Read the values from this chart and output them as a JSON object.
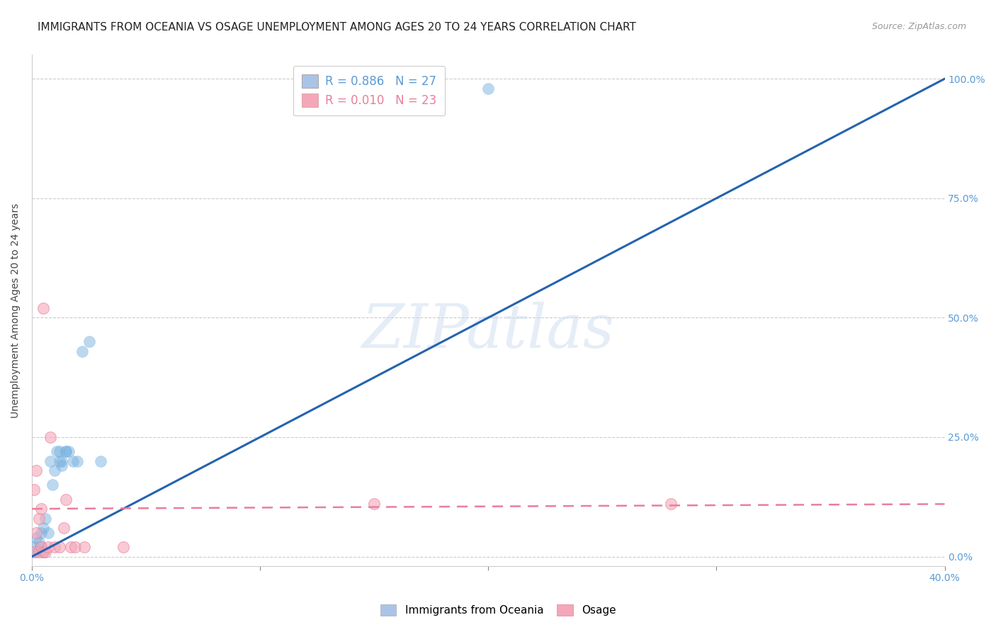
{
  "title": "IMMIGRANTS FROM OCEANIA VS OSAGE UNEMPLOYMENT AMONG AGES 20 TO 24 YEARS CORRELATION CHART",
  "source": "Source: ZipAtlas.com",
  "ylabel": "Unemployment Among Ages 20 to 24 years",
  "xlim": [
    0.0,
    0.4
  ],
  "ylim": [
    -0.02,
    1.05
  ],
  "watermark_text": "ZIPatlas",
  "blue_scatter": [
    [
      0.001,
      0.02
    ],
    [
      0.002,
      0.04
    ],
    [
      0.002,
      0.01
    ],
    [
      0.003,
      0.03
    ],
    [
      0.004,
      0.05
    ],
    [
      0.004,
      0.02
    ],
    [
      0.005,
      0.01
    ],
    [
      0.005,
      0.06
    ],
    [
      0.006,
      0.08
    ],
    [
      0.007,
      0.05
    ],
    [
      0.008,
      0.2
    ],
    [
      0.009,
      0.15
    ],
    [
      0.01,
      0.18
    ],
    [
      0.011,
      0.22
    ],
    [
      0.012,
      0.2
    ],
    [
      0.012,
      0.22
    ],
    [
      0.013,
      0.2
    ],
    [
      0.013,
      0.19
    ],
    [
      0.015,
      0.22
    ],
    [
      0.015,
      0.22
    ],
    [
      0.016,
      0.22
    ],
    [
      0.018,
      0.2
    ],
    [
      0.02,
      0.2
    ],
    [
      0.022,
      0.43
    ],
    [
      0.025,
      0.45
    ],
    [
      0.03,
      0.2
    ],
    [
      0.2,
      0.98
    ]
  ],
  "pink_scatter": [
    [
      0.001,
      0.01
    ],
    [
      0.001,
      0.14
    ],
    [
      0.002,
      0.18
    ],
    [
      0.002,
      0.05
    ],
    [
      0.003,
      0.08
    ],
    [
      0.003,
      0.01
    ],
    [
      0.004,
      0.1
    ],
    [
      0.004,
      0.02
    ],
    [
      0.005,
      0.52
    ],
    [
      0.005,
      0.01
    ],
    [
      0.006,
      0.01
    ],
    [
      0.007,
      0.02
    ],
    [
      0.008,
      0.25
    ],
    [
      0.01,
      0.02
    ],
    [
      0.012,
      0.02
    ],
    [
      0.014,
      0.06
    ],
    [
      0.015,
      0.12
    ],
    [
      0.017,
      0.02
    ],
    [
      0.019,
      0.02
    ],
    [
      0.023,
      0.02
    ],
    [
      0.04,
      0.02
    ],
    [
      0.15,
      0.11
    ],
    [
      0.28,
      0.11
    ]
  ],
  "blue_line_x": [
    0.0,
    0.4
  ],
  "blue_line_y": [
    0.0,
    1.0
  ],
  "pink_line_x": [
    0.0,
    0.4
  ],
  "pink_line_y": [
    0.1,
    0.11
  ],
  "scatter_color_blue": "#7ab3e0",
  "scatter_color_pink": "#f4a7b9",
  "scatter_edge_blue": "#5b9bd5",
  "scatter_edge_pink": "#e87f9a",
  "line_color_blue": "#2563ae",
  "line_color_pink": "#e87f9a",
  "background_color": "#ffffff",
  "grid_color": "#cccccc",
  "title_fontsize": 11,
  "axis_label_fontsize": 10,
  "tick_fontsize": 10,
  "right_tick_color": "#5b9bd5",
  "xlabel_color": "#5b9bd5",
  "ytick_vals": [
    0.0,
    0.25,
    0.5,
    0.75,
    1.0
  ],
  "ytick_labels": [
    "0.0%",
    "25.0%",
    "50.0%",
    "75.0%",
    "100.0%"
  ],
  "xtick_vals": [
    0.0,
    0.1,
    0.2,
    0.3,
    0.4
  ],
  "xtick_labels_show": [
    "0.0%",
    "",
    "",
    "",
    "40.0%"
  ],
  "legend_entries": [
    {
      "label_r": "R = 0.886",
      "label_n": "N = 27",
      "color": "#aac4e8"
    },
    {
      "label_r": "R = 0.010",
      "label_n": "N = 23",
      "color": "#f4a7b9"
    }
  ]
}
